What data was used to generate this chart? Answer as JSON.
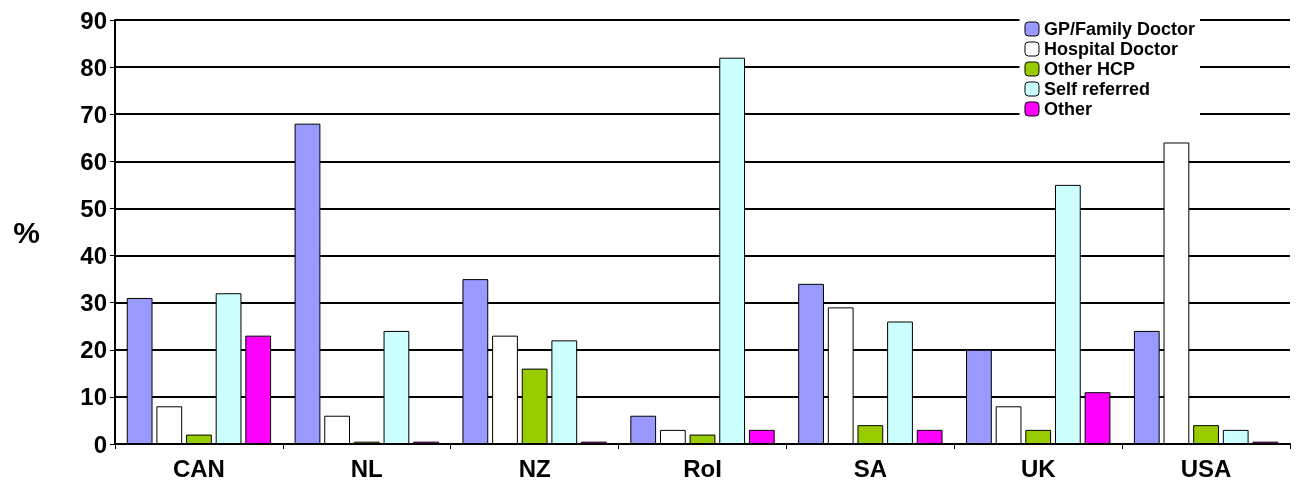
{
  "chart_data": {
    "type": "bar",
    "ylabel": "%",
    "categories": [
      "CAN",
      "NL",
      "NZ",
      "RoI",
      "SA",
      "UK",
      "USA"
    ],
    "series": [
      {
        "name": "GP/Family Doctor",
        "color": "#9999ff",
        "values": [
          31,
          68,
          35,
          6,
          34,
          20,
          24
        ]
      },
      {
        "name": "Hospital Doctor",
        "color": "#ffffff",
        "values": [
          8,
          6,
          23,
          3,
          29,
          8,
          64
        ]
      },
      {
        "name": "Other HCP",
        "color": "#99cc00",
        "values": [
          2,
          0.5,
          16,
          2,
          4,
          3,
          4
        ]
      },
      {
        "name": "Self referred",
        "color": "#ccffff",
        "values": [
          32,
          24,
          22,
          82,
          26,
          55,
          3
        ]
      },
      {
        "name": "Other",
        "color": "#ff00ff",
        "values": [
          23,
          0.5,
          0.5,
          3,
          3,
          11,
          0.5
        ]
      }
    ],
    "ylim": [
      0,
      90
    ],
    "yticks": [
      0,
      10,
      20,
      30,
      40,
      50,
      60,
      70,
      80,
      90
    ],
    "grid": "y",
    "legend": "top right"
  }
}
